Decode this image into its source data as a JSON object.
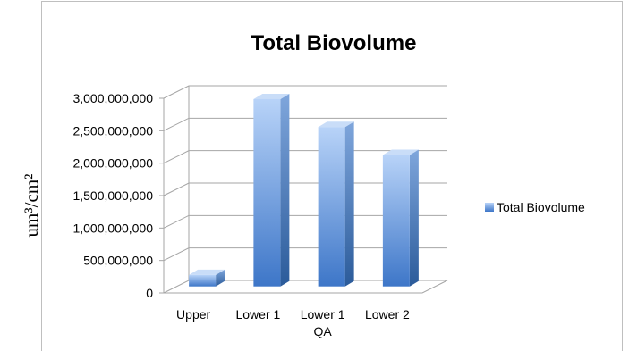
{
  "chart_data": {
    "type": "bar",
    "title": "Total Biovolume",
    "categories": [
      "Upper",
      "Lower 1",
      "Lower 1\nQA",
      "Lower 2"
    ],
    "series": [
      {
        "name": "Total Biovolume",
        "values": [
          190000000,
          2900000000,
          2470000000,
          2040000000
        ]
      }
    ],
    "ylim": [
      0,
      3000000000
    ],
    "yticks": [
      0,
      500000000,
      1000000000,
      1500000000,
      2000000000,
      2500000000,
      3000000000
    ],
    "ytick_labels": [
      "0",
      "500,000,000",
      "1,000,000,000",
      "1,500,000,000",
      "2,000,000,000",
      "2,500,000,000",
      "3,000,000,000"
    ],
    "ylabel": "um³/cm²",
    "xlabel": "",
    "grid": true,
    "legend_position": "right",
    "bar_color_light": "#a9c8f5",
    "bar_color_dark": "#3f78c9",
    "bar_color_side": "#2f5f9f"
  }
}
